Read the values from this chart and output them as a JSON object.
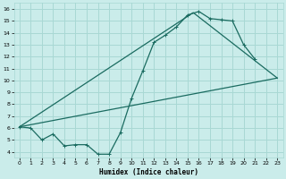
{
  "xlabel": "Humidex (Indice chaleur)",
  "xlim": [
    -0.5,
    23.5
  ],
  "ylim": [
    3.5,
    16.5
  ],
  "xticks": [
    0,
    1,
    2,
    3,
    4,
    5,
    6,
    7,
    8,
    9,
    10,
    11,
    12,
    13,
    14,
    15,
    16,
    17,
    18,
    19,
    20,
    21,
    22,
    23
  ],
  "yticks": [
    4,
    5,
    6,
    7,
    8,
    9,
    10,
    11,
    12,
    13,
    14,
    15,
    16
  ],
  "bg_color": "#caecea",
  "grid_color": "#a8d8d4",
  "line_color": "#1a6b60",
  "line1_x": [
    0,
    1,
    2,
    3,
    4,
    5,
    6,
    7,
    8,
    9,
    10,
    11,
    12,
    13,
    14,
    15,
    16,
    17,
    18,
    19,
    20,
    21
  ],
  "line1_y": [
    6.1,
    6.0,
    5.0,
    5.5,
    4.5,
    4.6,
    4.6,
    3.8,
    3.8,
    5.6,
    8.5,
    10.8,
    13.2,
    13.8,
    14.5,
    15.5,
    15.8,
    15.2,
    15.1,
    15.0,
    13.0,
    11.8
  ],
  "line2_x": [
    0,
    15.5,
    23
  ],
  "line2_y": [
    6.1,
    15.7,
    10.2
  ],
  "line3_x": [
    0,
    23
  ],
  "line3_y": [
    6.1,
    10.2
  ]
}
